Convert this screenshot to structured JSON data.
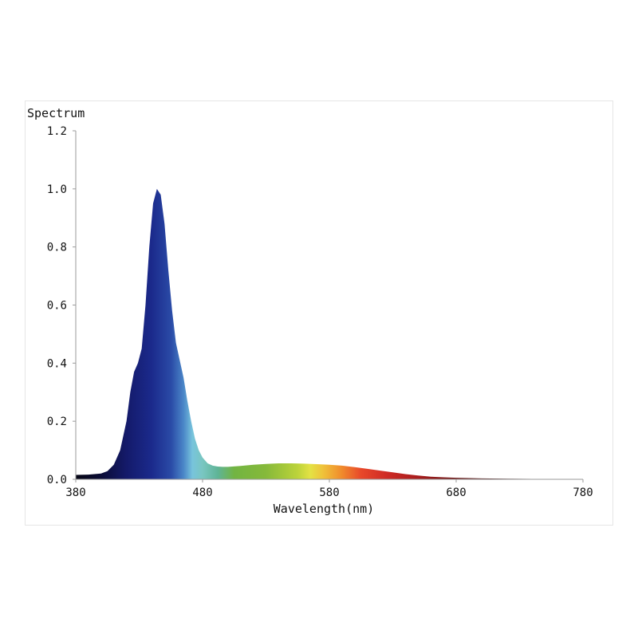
{
  "chart_data": {
    "type": "area",
    "title": "",
    "ylabel": "Spectrum",
    "xlabel": "Wavelength(nm)",
    "xlim": [
      380,
      780
    ],
    "ylim": [
      0,
      1.2
    ],
    "x_ticks": [
      "380",
      "480",
      "580",
      "680",
      "780"
    ],
    "y_ticks": [
      "0.0",
      "0.2",
      "0.4",
      "0.6",
      "0.8",
      "1.0",
      "1.2"
    ],
    "grid": false,
    "fill": "wavelength-colored spectrum",
    "series": [
      {
        "x": [
          380,
          390,
          400,
          405,
          410,
          415,
          420,
          423,
          426,
          429,
          432,
          435,
          438,
          441,
          444,
          447,
          450,
          453,
          456,
          459,
          462,
          465,
          468,
          471,
          474,
          477,
          480,
          484,
          488,
          492,
          496,
          500,
          510,
          520,
          530,
          540,
          550,
          560,
          570,
          580,
          590,
          600,
          610,
          620,
          630,
          640,
          650,
          660,
          670,
          680,
          700,
          720,
          740,
          760,
          780
        ],
        "values": [
          0.015,
          0.016,
          0.02,
          0.028,
          0.05,
          0.1,
          0.2,
          0.3,
          0.37,
          0.4,
          0.45,
          0.6,
          0.8,
          0.95,
          1.0,
          0.98,
          0.88,
          0.72,
          0.58,
          0.47,
          0.41,
          0.35,
          0.27,
          0.2,
          0.14,
          0.1,
          0.075,
          0.055,
          0.047,
          0.044,
          0.043,
          0.043,
          0.046,
          0.05,
          0.053,
          0.055,
          0.055,
          0.054,
          0.052,
          0.05,
          0.047,
          0.042,
          0.036,
          0.03,
          0.024,
          0.018,
          0.013,
          0.009,
          0.007,
          0.005,
          0.003,
          0.002,
          0.0015,
          0.001,
          0.001
        ]
      }
    ]
  }
}
